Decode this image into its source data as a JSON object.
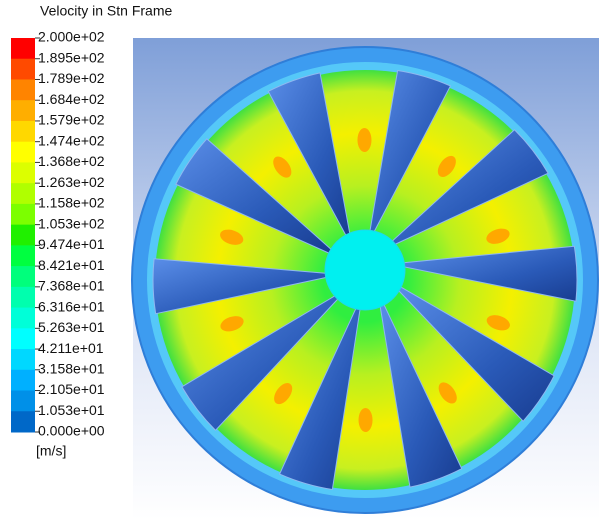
{
  "legend": {
    "title": "Velocity in Stn Frame",
    "labels": [
      "2.000e+02",
      "1.895e+02",
      "1.789e+02",
      "1.684e+02",
      "1.579e+02",
      "1.474e+02",
      "1.368e+02",
      "1.263e+02",
      "1.158e+02",
      "1.053e+02",
      "9.474e+01",
      "8.421e+01",
      "7.368e+01",
      "6.316e+01",
      "5.263e+01",
      "4.211e+01",
      "3.158e+01",
      "2.105e+01",
      "1.053e+01",
      "0.000e+00"
    ],
    "colors": [
      "#ff0000",
      "#ff4a00",
      "#ff8400",
      "#ffae00",
      "#ffd800",
      "#ffff00",
      "#dcff00",
      "#b0ff00",
      "#7cff00",
      "#20f000",
      "#00ff40",
      "#00ff7c",
      "#00ffae",
      "#00ffd8",
      "#00ffff",
      "#00d8ff",
      "#00b0ff",
      "#0090e8",
      "#0068c8"
    ],
    "unit": "[m/s]"
  }
}
